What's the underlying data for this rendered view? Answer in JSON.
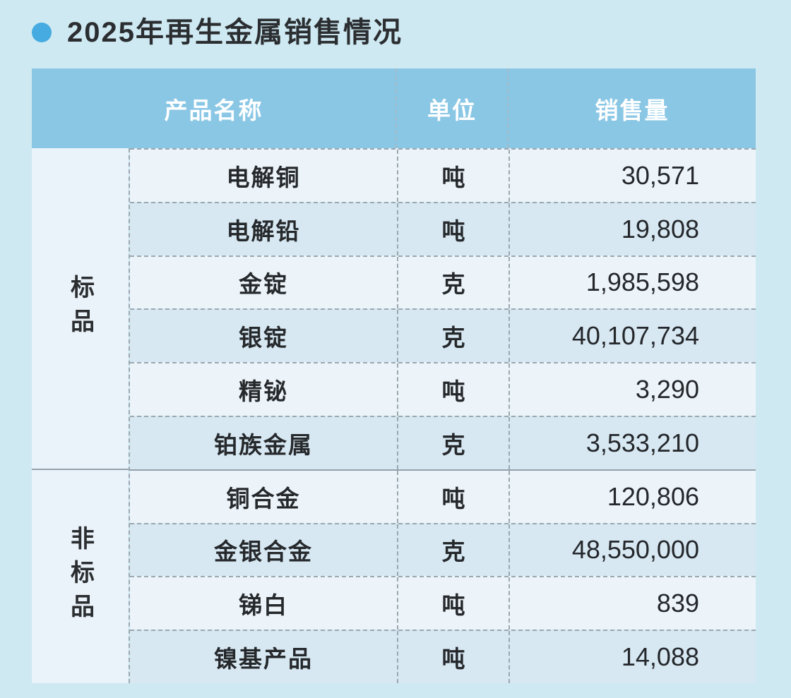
{
  "title": "2025年再生金属销售情况",
  "colors": {
    "page_bg": "#cee9f2",
    "bullet": "#45abe0",
    "header_bg": "#8ac7e5",
    "header_text": "#ffffff",
    "row_light": "#ecf4fa",
    "row_dark": "#d7e8f2",
    "category_bg": "#ebf3fa",
    "text": "#26292c",
    "border_dashed": "#9aa8b0",
    "section_divider": "#93a1ab"
  },
  "table": {
    "headers": [
      "产品名称",
      "单位",
      "销售量"
    ],
    "categories": [
      {
        "label": "标品",
        "row_count": 6
      },
      {
        "label": "非标品",
        "row_count": 4
      }
    ],
    "rows": [
      {
        "category": "标品",
        "product": "电解铜",
        "unit": "吨",
        "quantity": "30,571"
      },
      {
        "category": "标品",
        "product": "电解铅",
        "unit": "吨",
        "quantity": "19,808"
      },
      {
        "category": "标品",
        "product": "金锭",
        "unit": "克",
        "quantity": "1,985,598"
      },
      {
        "category": "标品",
        "product": "银锭",
        "unit": "克",
        "quantity": "40,107,734"
      },
      {
        "category": "标品",
        "product": "精铋",
        "unit": "吨",
        "quantity": "3,290"
      },
      {
        "category": "标品",
        "product": "铂族金属",
        "unit": "克",
        "quantity": "3,533,210"
      },
      {
        "category": "非标品",
        "product": "铜合金",
        "unit": "吨",
        "quantity": "120,806"
      },
      {
        "category": "非标品",
        "product": "金银合金",
        "unit": "克",
        "quantity": "48,550,000"
      },
      {
        "category": "非标品",
        "product": "锑白",
        "unit": "吨",
        "quantity": "839"
      },
      {
        "category": "非标品",
        "product": "镍基产品",
        "unit": "吨",
        "quantity": "14,088"
      }
    ]
  },
  "chart_data": {
    "type": "table",
    "title": "2025年再生金属销售情况",
    "columns": [
      "产品名称",
      "单位",
      "销售量"
    ],
    "row_groups": [
      {
        "group": "标品",
        "rows": [
          {
            "product": "电解铜",
            "unit": "吨",
            "sales_volume": 30571
          },
          {
            "product": "电解铅",
            "unit": "吨",
            "sales_volume": 19808
          },
          {
            "product": "金锭",
            "unit": "克",
            "sales_volume": 1985598
          },
          {
            "product": "银锭",
            "unit": "克",
            "sales_volume": 40107734
          },
          {
            "product": "精铋",
            "unit": "吨",
            "sales_volume": 3290
          },
          {
            "product": "铂族金属",
            "unit": "克",
            "sales_volume": 3533210
          }
        ]
      },
      {
        "group": "非标品",
        "rows": [
          {
            "product": "铜合金",
            "unit": "吨",
            "sales_volume": 120806
          },
          {
            "product": "金银合金",
            "unit": "克",
            "sales_volume": 48550000
          },
          {
            "product": "锑白",
            "unit": "吨",
            "sales_volume": 839
          },
          {
            "product": "镍基产品",
            "unit": "吨",
            "sales_volume": 14088
          }
        ]
      }
    ]
  }
}
